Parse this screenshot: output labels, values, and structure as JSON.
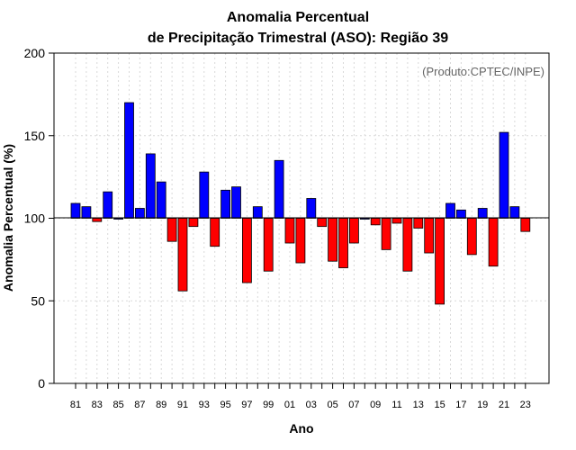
{
  "chart_data": {
    "type": "bar",
    "title": [
      "Anomalia Percentual",
      "de Precipitação Trimestral (ASO): Região 39"
    ],
    "credit": "(Produto:CPTEC/INPE)",
    "xlabel": "Ano",
    "ylabel": "Anomalia Percentual (%)",
    "ylim": [
      0,
      200
    ],
    "yticks": [
      0,
      50,
      100,
      150,
      200
    ],
    "baseline": 100,
    "grid": true,
    "colors": {
      "above": "#0000ff",
      "below": "#ff0000",
      "edge": "#000000",
      "grid": "#d9d9d9"
    },
    "categories": [
      "81",
      "82",
      "83",
      "84",
      "85",
      "86",
      "87",
      "88",
      "89",
      "90",
      "91",
      "92",
      "93",
      "94",
      "95",
      "96",
      "97",
      "98",
      "99",
      "00",
      "01",
      "02",
      "03",
      "04",
      "05",
      "06",
      "07",
      "08",
      "09",
      "10",
      "11",
      "12",
      "13",
      "14",
      "15",
      "16",
      "17",
      "18",
      "19",
      "20",
      "21",
      "22",
      "23"
    ],
    "xtick_labels": [
      "81",
      "83",
      "85",
      "87",
      "89",
      "91",
      "93",
      "95",
      "97",
      "99",
      "01",
      "03",
      "05",
      "07",
      "09",
      "11",
      "13",
      "15",
      "17",
      "19",
      "21",
      "23"
    ],
    "values": [
      109,
      107,
      98,
      116,
      100,
      170,
      106,
      139,
      122,
      86,
      56,
      95,
      128,
      83,
      117,
      119,
      61,
      107,
      68,
      135,
      85,
      73,
      112,
      95,
      74,
      70,
      85,
      100,
      96,
      81,
      97,
      68,
      94,
      79,
      48,
      109,
      105,
      78,
      106,
      71,
      152,
      107,
      92
    ]
  }
}
